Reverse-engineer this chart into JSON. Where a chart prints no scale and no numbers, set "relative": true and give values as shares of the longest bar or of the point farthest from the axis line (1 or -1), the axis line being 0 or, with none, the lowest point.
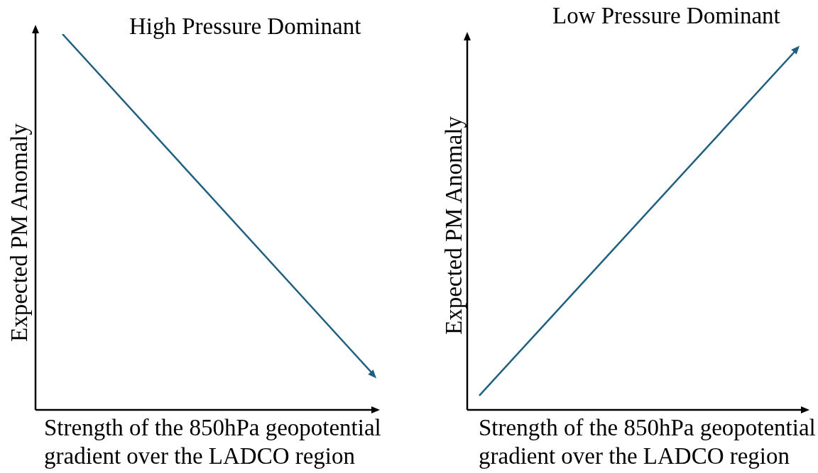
{
  "chart_data": [
    {
      "type": "line",
      "title": "High Pressure Dominant",
      "xlabel": "Strength of the 850hPa geopotential gradient over the LADCO region",
      "ylabel": "Expected PM Anomaly",
      "categories": [
        null,
        null
      ],
      "relative": true,
      "series": [
        {
          "color": "#1f5f7f",
          "values": [
            1,
            0.1
          ]
        }
      ]
    },
    {
      "type": "line",
      "title": "Low Pressure Dominant",
      "xlabel": "Strength of the 850hPa geopotential gradient over the LADCO region",
      "ylabel": "Expected PM Anomaly",
      "categories": [
        null,
        null
      ],
      "relative": true,
      "series": [
        {
          "color": "#1f5f7f",
          "values": [
            0.04,
            1
          ]
        }
      ]
    }
  ]
}
